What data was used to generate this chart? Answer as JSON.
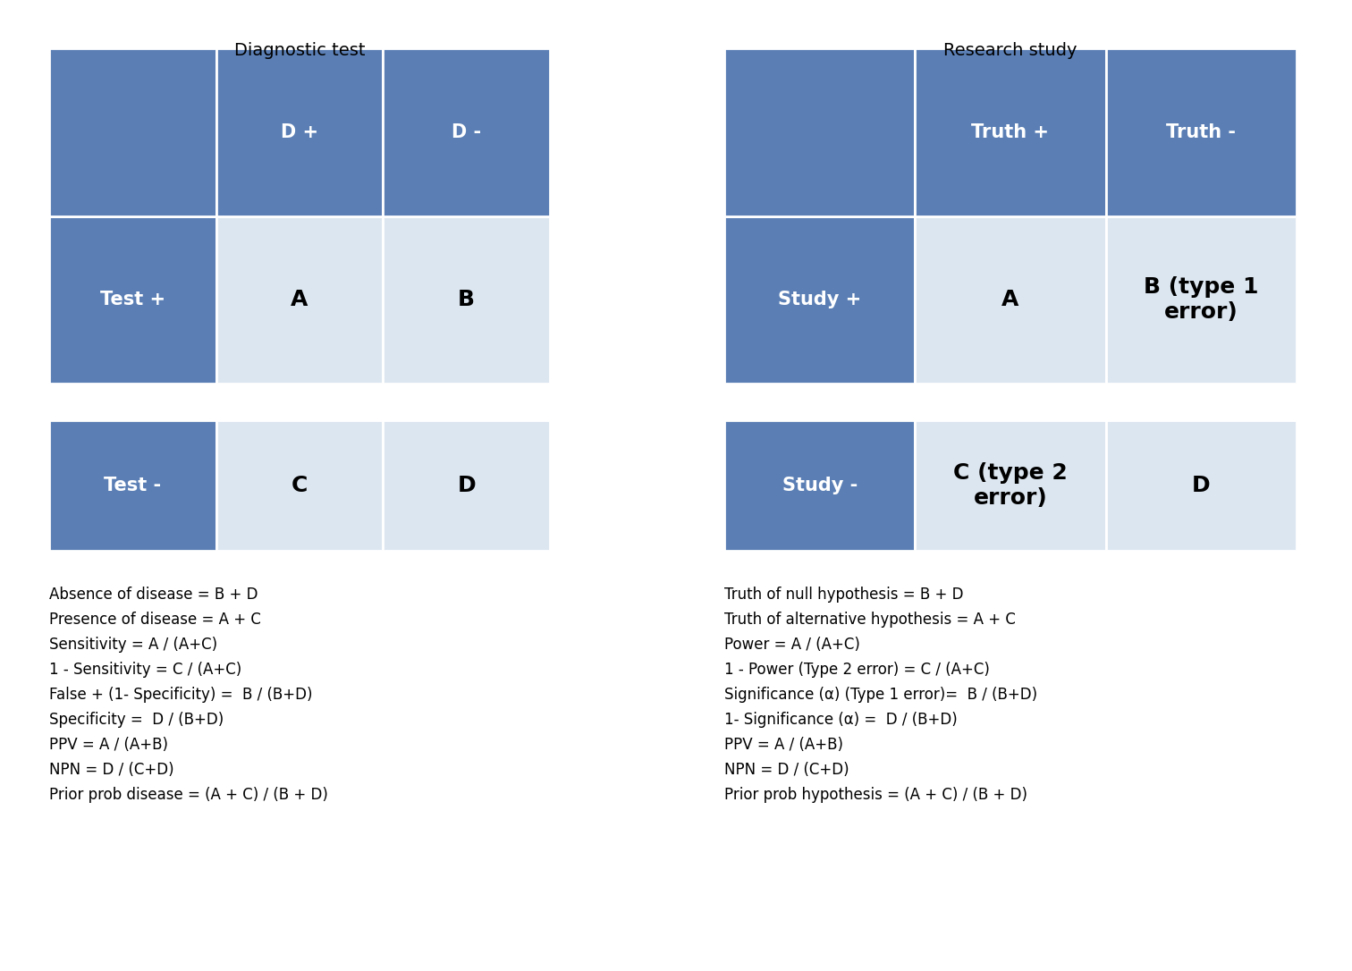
{
  "bg_color": "#ffffff",
  "blue_dark": "#5b7fb5",
  "blue_light": "#dce6f0",
  "white": "#ffffff",
  "black": "#000000",
  "left_title": "Diagnostic test",
  "right_title": "Research study",
  "left_table": {
    "header_row": [
      "",
      "D +",
      "D -"
    ],
    "rows": [
      [
        "Test +",
        "A",
        "B"
      ],
      [
        "Test -",
        "C",
        "D"
      ]
    ]
  },
  "right_table": {
    "header_row": [
      "",
      "Truth +",
      "Truth -"
    ],
    "rows": [
      [
        "Study +",
        "A",
        "B (type 1\nerror)"
      ],
      [
        "Study -",
        "C (type 2\nerror)",
        "D"
      ]
    ]
  },
  "left_notes": [
    "Absence of disease = B + D",
    "Presence of disease = A + C",
    "Sensitivity = A / (A+C)",
    "1 - Sensitivity = C / (A+C)",
    "False + (1- Specificity) =  B / (B+D)",
    "Specificity =  D / (B+D)",
    "PPV = A / (A+B)",
    "NPN = D / (C+D)",
    "Prior prob disease = (A + C) / (B + D)"
  ],
  "right_notes": [
    "Truth of null hypothesis = B + D",
    "Truth of alternative hypothesis = A + C",
    "Power = A / (A+C)",
    "1 - Power (Type 2 error) = C / (A+C)",
    "Significance (α) (Type 1 error)=  B / (B+D)",
    "1- Significance (α) =  D / (B+D)",
    "PPV = A / (A+B)",
    "NPN = D / (C+D)",
    "Prior prob hypothesis = (A + C) / (B + D)"
  ],
  "title_fontsize": 14,
  "header_fontsize": 15,
  "cell_fontsize": 18,
  "note_fontsize": 12
}
